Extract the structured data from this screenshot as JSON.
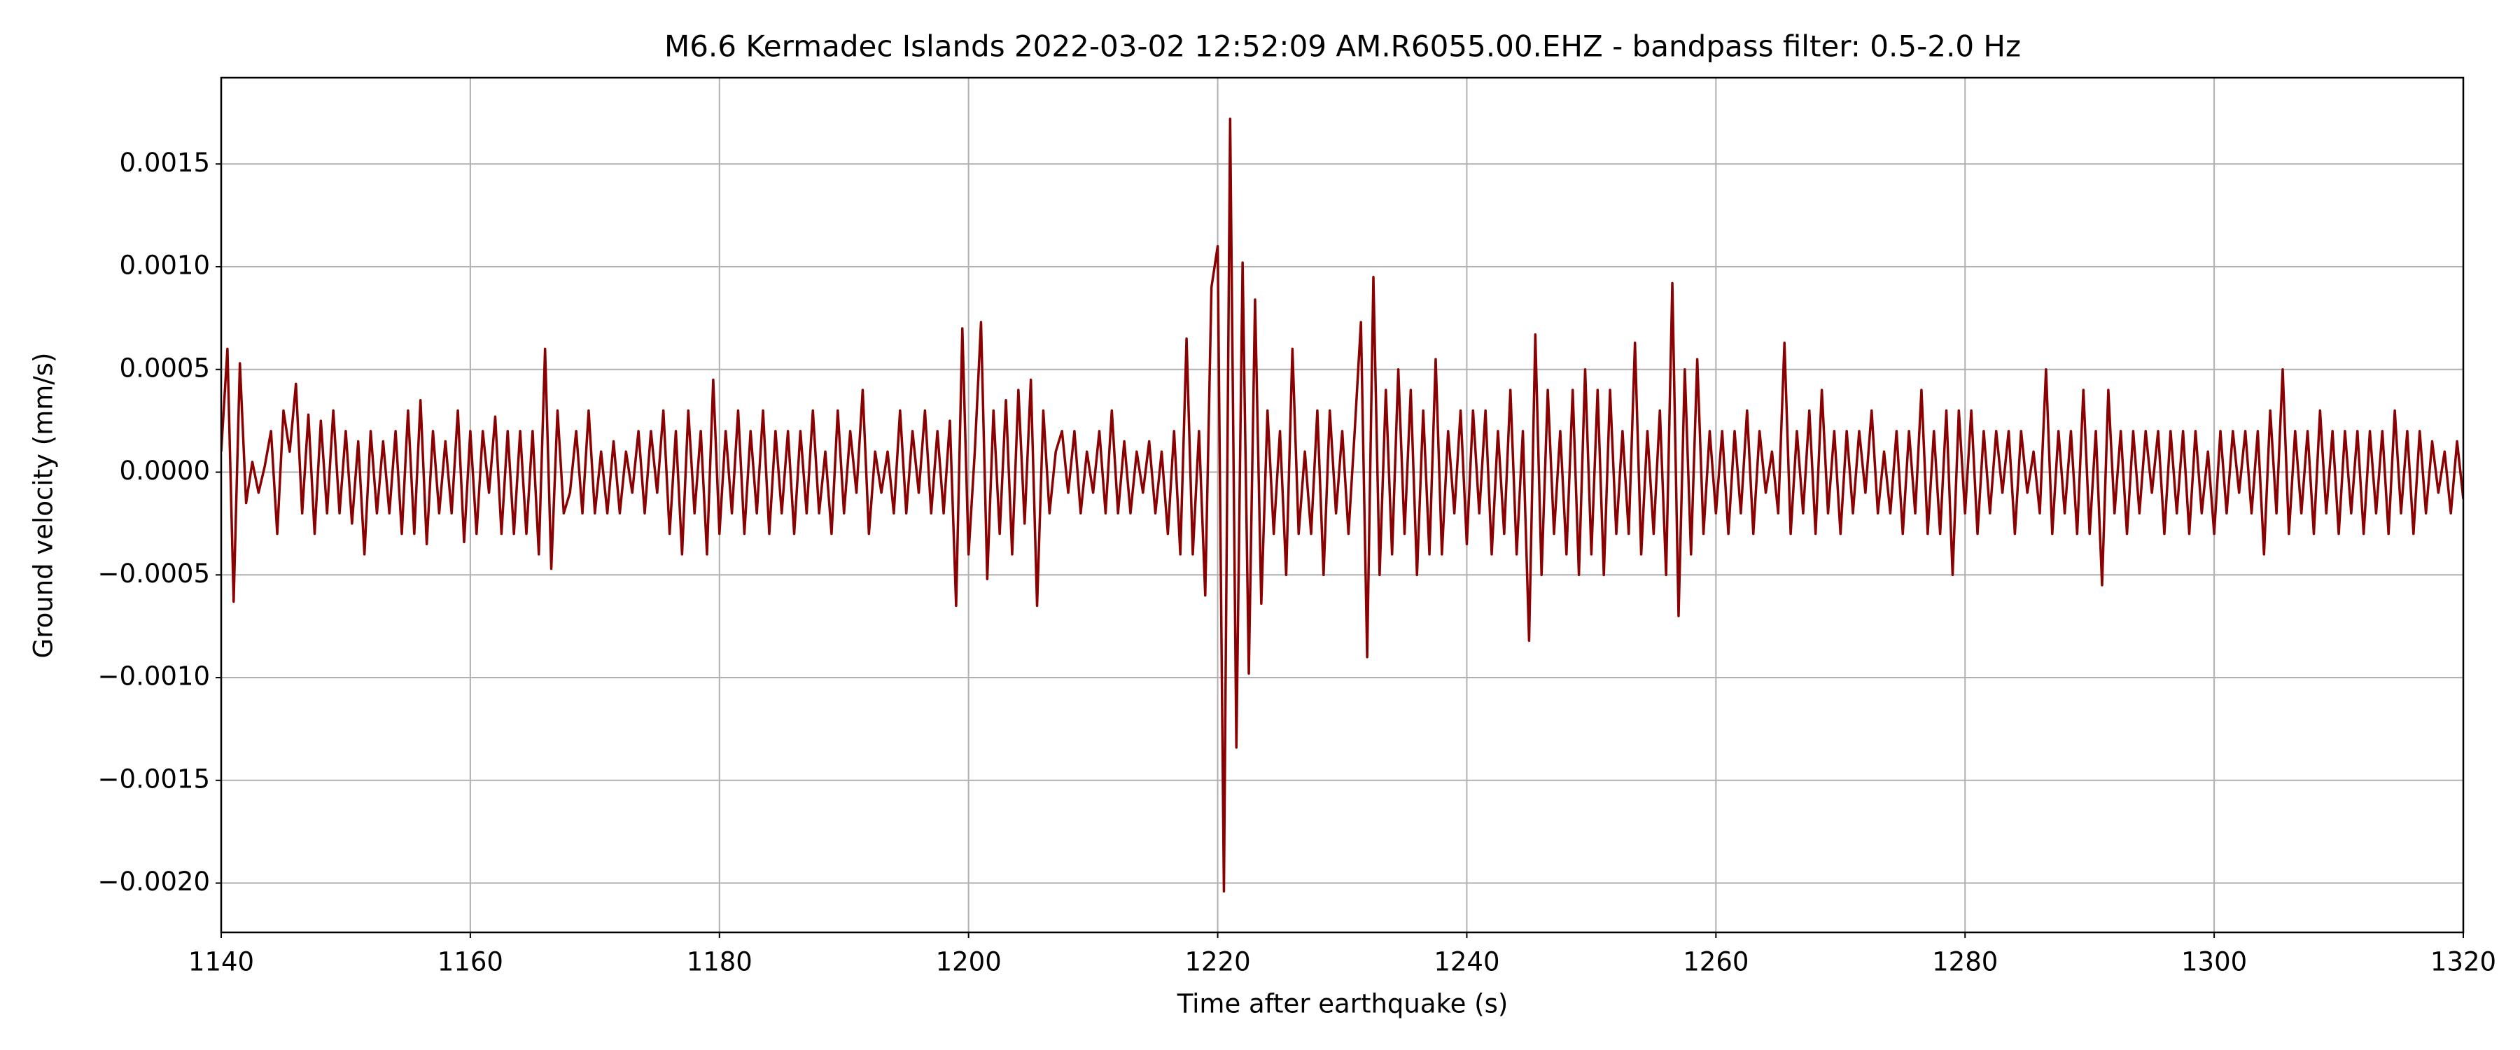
{
  "chart_data": {
    "type": "line",
    "title": "M6.6 Kermadec Islands 2022-03-02 12:52:09 AM.R6055.00.EHZ - bandpass filter: 0.5-2.0 Hz",
    "x_label": "Time after earthquake (s)",
    "y_label": "Ground velocity (mm/s)",
    "xlim": [
      1140,
      1320
    ],
    "ylim": [
      -0.00224,
      0.00192
    ],
    "xticks": [
      1140,
      1160,
      1180,
      1200,
      1220,
      1240,
      1260,
      1280,
      1300,
      1320
    ],
    "yticks": [
      {
        "value": -0.002,
        "label": "−0.0020"
      },
      {
        "value": -0.0015,
        "label": "−0.0015"
      },
      {
        "value": -0.001,
        "label": "−0.0010"
      },
      {
        "value": -0.0005,
        "label": "−0.0005"
      },
      {
        "value": 0,
        "label": "0.0000"
      },
      {
        "value": 0.0005,
        "label": "0.0005"
      },
      {
        "value": 0.001,
        "label": "0.0010"
      },
      {
        "value": 0.0015,
        "label": "0.0015"
      }
    ],
    "grid": true,
    "series": [
      {
        "color": "#8b0000",
        "x": [
          1140,
          1140.5,
          1141,
          1141.5,
          1142,
          1142.5,
          1143,
          1143.5,
          1144,
          1144.5,
          1145,
          1145.5,
          1146,
          1146.5,
          1147,
          1147.5,
          1148,
          1148.5,
          1149,
          1149.5,
          1150,
          1150.5,
          1151,
          1151.5,
          1152,
          1152.5,
          1153,
          1153.5,
          1154,
          1154.5,
          1155,
          1155.5,
          1156,
          1156.5,
          1157,
          1157.5,
          1158,
          1158.5,
          1159,
          1159.5,
          1160,
          1160.5,
          1161,
          1161.5,
          1162,
          1162.5,
          1163,
          1163.5,
          1164,
          1164.5,
          1165,
          1165.5,
          1166,
          1166.5,
          1167,
          1167.5,
          1168,
          1168.5,
          1169,
          1169.5,
          1170,
          1170.5,
          1171,
          1171.5,
          1172,
          1172.5,
          1173,
          1173.5,
          1174,
          1174.5,
          1175,
          1175.5,
          1176,
          1176.5,
          1177,
          1177.5,
          1178,
          1178.5,
          1179,
          1179.5,
          1180,
          1180.5,
          1181,
          1181.5,
          1182,
          1182.5,
          1183,
          1183.5,
          1184,
          1184.5,
          1185,
          1185.5,
          1186,
          1186.5,
          1187,
          1187.5,
          1188,
          1188.5,
          1189,
          1189.5,
          1190,
          1190.5,
          1191,
          1191.5,
          1192,
          1192.5,
          1193,
          1193.5,
          1194,
          1194.5,
          1195,
          1195.5,
          1196,
          1196.5,
          1197,
          1197.5,
          1198,
          1198.5,
          1199,
          1199.5,
          1200,
          1200.5,
          1201,
          1201.5,
          1202,
          1202.5,
          1203,
          1203.5,
          1204,
          1204.5,
          1205,
          1205.5,
          1206,
          1206.5,
          1207,
          1207.5,
          1208,
          1208.5,
          1209,
          1209.5,
          1210,
          1210.5,
          1211,
          1211.5,
          1212,
          1212.5,
          1213,
          1213.5,
          1214,
          1214.5,
          1215,
          1215.5,
          1216,
          1216.5,
          1217,
          1217.5,
          1218,
          1218.5,
          1219,
          1219.5,
          1220,
          1220.5,
          1221,
          1221.5,
          1222,
          1222.5,
          1223,
          1223.5,
          1224,
          1224.5,
          1225,
          1225.5,
          1226,
          1226.5,
          1227,
          1227.5,
          1228,
          1228.5,
          1229,
          1229.5,
          1230,
          1230.5,
          1231,
          1231.5,
          1232,
          1232.5,
          1233,
          1233.5,
          1234,
          1234.5,
          1235,
          1235.5,
          1236,
          1236.5,
          1237,
          1237.5,
          1238,
          1238.5,
          1239,
          1239.5,
          1240,
          1240.5,
          1241,
          1241.5,
          1242,
          1242.5,
          1243,
          1243.5,
          1244,
          1244.5,
          1245,
          1245.5,
          1246,
          1246.5,
          1247,
          1247.5,
          1248,
          1248.5,
          1249,
          1249.5,
          1250,
          1250.5,
          1251,
          1251.5,
          1252,
          1252.5,
          1253,
          1253.5,
          1254,
          1254.5,
          1255,
          1255.5,
          1256,
          1256.5,
          1257,
          1257.5,
          1258,
          1258.5,
          1259,
          1259.5,
          1260,
          1260.5,
          1261,
          1261.5,
          1262,
          1262.5,
          1263,
          1263.5,
          1264,
          1264.5,
          1265,
          1265.5,
          1266,
          1266.5,
          1267,
          1267.5,
          1268,
          1268.5,
          1269,
          1269.5,
          1270,
          1270.5,
          1271,
          1271.5,
          1272,
          1272.5,
          1273,
          1273.5,
          1274,
          1274.5,
          1275,
          1275.5,
          1276,
          1276.5,
          1277,
          1277.5,
          1278,
          1278.5,
          1279,
          1279.5,
          1280,
          1280.5,
          1281,
          1281.5,
          1282,
          1282.5,
          1283,
          1283.5,
          1284,
          1284.5,
          1285,
          1285.5,
          1286,
          1286.5,
          1287,
          1287.5,
          1288,
          1288.5,
          1289,
          1289.5,
          1290,
          1290.5,
          1291,
          1291.5,
          1292,
          1292.5,
          1293,
          1293.5,
          1294,
          1294.5,
          1295,
          1295.5,
          1296,
          1296.5,
          1297,
          1297.5,
          1298,
          1298.5,
          1299,
          1299.5,
          1300,
          1300.5,
          1301,
          1301.5,
          1302,
          1302.5,
          1303,
          1303.5,
          1304,
          1304.5,
          1305,
          1305.5,
          1306,
          1306.5,
          1307,
          1307.5,
          1308,
          1308.5,
          1309,
          1309.5,
          1310,
          1310.5,
          1311,
          1311.5,
          1312,
          1312.5,
          1313,
          1313.5,
          1314,
          1314.5,
          1315,
          1315.5,
          1316,
          1316.5,
          1317,
          1317.5,
          1318,
          1318.5,
          1319,
          1319.5,
          1320
        ],
        "values": [
          0.0001,
          0.0006,
          -0.00063,
          0.00053,
          -0.00015,
          5e-05,
          -0.0001,
          3e-05,
          0.0002,
          -0.0003,
          0.0003,
          0.0001,
          0.00043,
          -0.0002,
          0.00028,
          -0.0003,
          0.00025,
          -0.0002,
          0.0003,
          -0.0002,
          0.0002,
          -0.00025,
          0.00015,
          -0.0004,
          0.0002,
          -0.0002,
          0.00015,
          -0.0002,
          0.0002,
          -0.0003,
          0.0003,
          -0.0003,
          0.00035,
          -0.00035,
          0.0002,
          -0.0002,
          0.00015,
          -0.0002,
          0.0003,
          -0.00034,
          0.0002,
          -0.0003,
          0.0002,
          -0.0001,
          0.00027,
          -0.0003,
          0.0002,
          -0.0003,
          0.0002,
          -0.0003,
          0.0002,
          -0.0004,
          0.0006,
          -0.00047,
          0.0003,
          -0.0002,
          -0.0001,
          0.0002,
          -0.0002,
          0.0003,
          -0.0002,
          0.0001,
          -0.0002,
          0.00015,
          -0.0002,
          0.0001,
          -0.0001,
          0.0002,
          -0.0002,
          0.0002,
          -0.0001,
          0.0003,
          -0.0003,
          0.0002,
          -0.0004,
          0.0003,
          -0.0002,
          0.0002,
          -0.0004,
          0.00045,
          -0.0003,
          0.0002,
          -0.0002,
          0.0003,
          -0.0003,
          0.0002,
          -0.0002,
          0.0003,
          -0.0003,
          0.0002,
          -0.0002,
          0.0002,
          -0.0003,
          0.0002,
          -0.0002,
          0.0003,
          -0.0002,
          0.0001,
          -0.0003,
          0.0003,
          -0.0002,
          0.0002,
          -0.0001,
          0.0004,
          -0.0003,
          0.0001,
          -0.0001,
          0.0001,
          -0.0002,
          0.0003,
          -0.0002,
          0.0002,
          -0.0001,
          0.0003,
          -0.0002,
          0.0002,
          -0.0002,
          0.00025,
          -0.00065,
          0.0007,
          -0.0004,
          0.0001,
          0.00073,
          -0.00052,
          0.0003,
          -0.0003,
          0.00035,
          -0.0004,
          0.0004,
          -0.00025,
          0.00045,
          -0.00065,
          0.0003,
          -0.0002,
          0.0001,
          0.0002,
          -0.0001,
          0.0002,
          -0.0002,
          0.0001,
          -0.0001,
          0.0002,
          -0.0002,
          0.0003,
          -0.0002,
          0.00015,
          -0.0002,
          0.0001,
          -0.0001,
          0.00015,
          -0.0002,
          0.0001,
          -0.0003,
          0.0002,
          -0.0004,
          0.00065,
          -0.0004,
          0.0002,
          -0.0006,
          0.0009,
          0.0011,
          -0.00204,
          0.00172,
          -0.00134,
          0.00102,
          -0.00098,
          0.00084,
          -0.00064,
          0.0003,
          -0.0003,
          0.0002,
          -0.0005,
          0.0006,
          -0.0003,
          0.0001,
          -0.0003,
          0.0003,
          -0.0005,
          0.0003,
          -0.0002,
          0.0002,
          -0.0003,
          0.0002,
          0.00073,
          -0.0009,
          0.00095,
          -0.0005,
          0.0004,
          -0.0004,
          0.0005,
          -0.0003,
          0.0004,
          -0.0005,
          0.0003,
          -0.0004,
          0.00055,
          -0.0004,
          0.0002,
          -0.0002,
          0.0003,
          -0.00035,
          0.0003,
          -0.0002,
          0.0003,
          -0.0004,
          0.0002,
          -0.0003,
          0.0004,
          -0.0004,
          0.0002,
          -0.00082,
          0.00067,
          -0.0005,
          0.0004,
          -0.0003,
          0.0002,
          -0.0004,
          0.0004,
          -0.0005,
          0.0005,
          -0.0004,
          0.0004,
          -0.0005,
          0.0004,
          -0.0003,
          0.0002,
          -0.0003,
          0.00063,
          -0.0004,
          0.0002,
          -0.0003,
          0.0003,
          -0.0005,
          0.00092,
          -0.0007,
          0.0005,
          -0.0004,
          0.00055,
          -0.0003,
          0.0002,
          -0.0002,
          0.0002,
          -0.0003,
          0.0002,
          -0.0002,
          0.0003,
          -0.0003,
          0.0002,
          -0.0001,
          0.0001,
          -0.0002,
          0.00063,
          -0.0003,
          0.0002,
          -0.0002,
          0.0003,
          -0.0003,
          0.0004,
          -0.0002,
          0.0002,
          -0.0003,
          0.0002,
          -0.0002,
          0.0002,
          -0.0001,
          0.0003,
          -0.0002,
          0.0001,
          -0.0002,
          0.0002,
          -0.0003,
          0.0002,
          -0.0002,
          0.0004,
          -0.0003,
          0.0002,
          -0.0003,
          0.0003,
          -0.0005,
          0.0003,
          -0.0002,
          0.0003,
          -0.0003,
          0.0002,
          -0.0002,
          0.0002,
          -0.0001,
          0.0002,
          -0.0003,
          0.0002,
          -0.0001,
          0.0001,
          -0.0002,
          0.0005,
          -0.0003,
          0.0002,
          -0.0002,
          0.0002,
          -0.0003,
          0.0004,
          -0.0003,
          0.0002,
          -0.00055,
          0.0004,
          -0.0002,
          0.0002,
          -0.0003,
          0.0002,
          -0.0002,
          0.0002,
          -0.0001,
          0.0002,
          -0.0003,
          0.0002,
          -0.0002,
          0.0002,
          -0.0003,
          0.0002,
          -0.0002,
          0.0001,
          -0.0003,
          0.0002,
          -0.0002,
          0.0002,
          -0.0001,
          0.0002,
          -0.0002,
          0.0002,
          -0.0004,
          0.0003,
          -0.0002,
          0.0005,
          -0.0003,
          0.0002,
          -0.0002,
          0.0002,
          -0.0003,
          0.0003,
          -0.0002,
          0.0002,
          -0.0003,
          0.0002,
          -0.0002,
          0.0002,
          -0.0003,
          0.0002,
          -0.0002,
          0.0002,
          -0.0003,
          0.0003,
          -0.0002,
          0.0002,
          -0.0003,
          0.0002,
          -0.0002,
          0.00015,
          -0.0001,
          0.0001,
          -0.0002,
          0.00015,
          -0.00013
        ]
      }
    ]
  }
}
